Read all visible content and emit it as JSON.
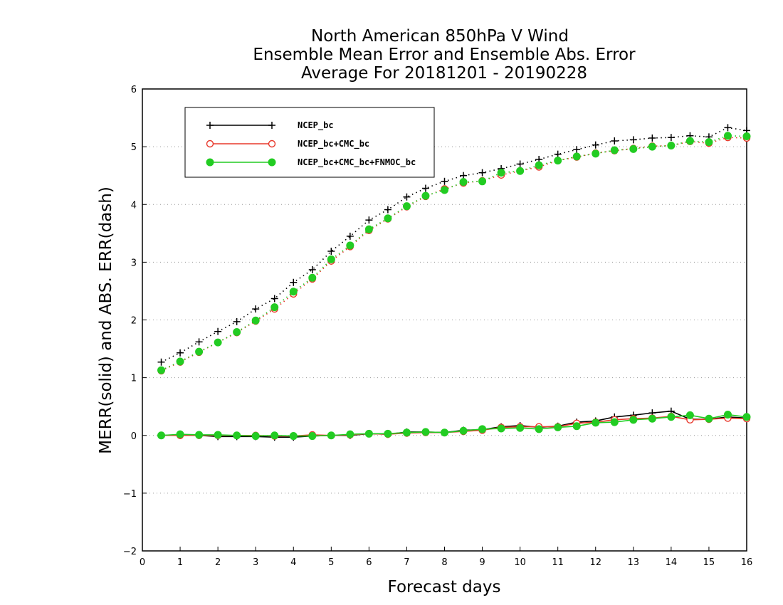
{
  "chart_data": {
    "type": "line",
    "title_lines": [
      "North American 850hPa V Wind",
      "Ensemble Mean Error and Ensemble Abs. Error",
      "Average For 20181201 - 20190228"
    ],
    "xlabel": "Forecast days",
    "ylabel": "MERR(solid) and ABS. ERR(dash)",
    "xlim": [
      0,
      16
    ],
    "ylim": [
      -2,
      6
    ],
    "x_ticks": [
      0,
      1,
      2,
      3,
      4,
      5,
      6,
      7,
      8,
      9,
      10,
      11,
      12,
      13,
      14,
      15,
      16
    ],
    "y_ticks": [
      -2,
      -1,
      0,
      1,
      2,
      3,
      4,
      5,
      6
    ],
    "y_tick_labels": [
      "−2",
      "−1",
      "0",
      "1",
      "2",
      "3",
      "4",
      "5",
      "6"
    ],
    "grid": "horizontal dotted",
    "legend_position": "top-left",
    "x": [
      0.5,
      1.0,
      1.5,
      2.0,
      2.5,
      3.0,
      3.5,
      4.0,
      4.5,
      5.0,
      5.5,
      6.0,
      6.5,
      7.0,
      7.5,
      8.0,
      8.5,
      9.0,
      9.5,
      10.0,
      10.5,
      11.0,
      11.5,
      12.0,
      12.5,
      13.0,
      13.5,
      14.0,
      14.5,
      15.0,
      15.5,
      16.0
    ],
    "series": [
      {
        "name": "NCEP_bc",
        "color": "#000000",
        "marker": "plus",
        "merr": [
          0.0,
          0.01,
          0.0,
          -0.02,
          -0.02,
          -0.02,
          -0.03,
          -0.03,
          -0.01,
          0.0,
          0.0,
          0.03,
          0.02,
          0.06,
          0.06,
          0.05,
          0.09,
          0.1,
          0.15,
          0.17,
          0.14,
          0.16,
          0.23,
          0.25,
          0.32,
          0.35,
          0.39,
          0.42,
          0.28,
          0.28,
          0.32,
          0.3
        ],
        "abs_err": [
          1.27,
          1.43,
          1.62,
          1.8,
          1.97,
          2.19,
          2.37,
          2.65,
          2.87,
          3.19,
          3.45,
          3.73,
          3.91,
          4.13,
          4.28,
          4.4,
          4.5,
          4.55,
          4.62,
          4.7,
          4.78,
          4.87,
          4.95,
          5.03,
          5.1,
          5.12,
          5.15,
          5.16,
          5.19,
          5.17,
          5.33,
          5.28
        ]
      },
      {
        "name": "NCEP_bc+CMC_bc",
        "color": "#e8382b",
        "marker": "open-circle",
        "merr": [
          0.0,
          0.0,
          0.0,
          0.0,
          0.0,
          0.0,
          -0.01,
          -0.01,
          0.01,
          0.0,
          0.01,
          0.03,
          0.02,
          0.04,
          0.05,
          0.05,
          0.07,
          0.09,
          0.14,
          0.15,
          0.15,
          0.15,
          0.21,
          0.23,
          0.27,
          0.29,
          0.3,
          0.33,
          0.27,
          0.28,
          0.3,
          0.29
        ],
        "abs_err": [
          1.12,
          1.27,
          1.44,
          1.61,
          1.78,
          1.98,
          2.19,
          2.45,
          2.71,
          3.02,
          3.27,
          3.55,
          3.75,
          3.96,
          4.14,
          4.27,
          4.37,
          4.41,
          4.51,
          4.58,
          4.65,
          4.76,
          4.82,
          4.89,
          4.93,
          4.97,
          5.01,
          5.02,
          5.09,
          5.06,
          5.16,
          5.15
        ]
      },
      {
        "name": "NCEP_bc+CMC_bc+FNMOC_bc",
        "color": "#22cc22",
        "marker": "filled-circle",
        "merr": [
          0.0,
          0.02,
          0.01,
          0.01,
          0.0,
          -0.01,
          0.0,
          -0.01,
          -0.01,
          0.0,
          0.02,
          0.03,
          0.03,
          0.05,
          0.06,
          0.05,
          0.08,
          0.11,
          0.12,
          0.13,
          0.11,
          0.14,
          0.16,
          0.22,
          0.23,
          0.27,
          0.29,
          0.32,
          0.35,
          0.29,
          0.36,
          0.32
        ],
        "abs_err": [
          1.13,
          1.28,
          1.45,
          1.61,
          1.79,
          1.99,
          2.22,
          2.49,
          2.73,
          3.05,
          3.29,
          3.57,
          3.76,
          3.97,
          4.15,
          4.25,
          4.39,
          4.4,
          4.55,
          4.58,
          4.68,
          4.76,
          4.83,
          4.88,
          4.94,
          4.96,
          5.0,
          5.02,
          5.1,
          5.08,
          5.19,
          5.18
        ]
      }
    ]
  }
}
